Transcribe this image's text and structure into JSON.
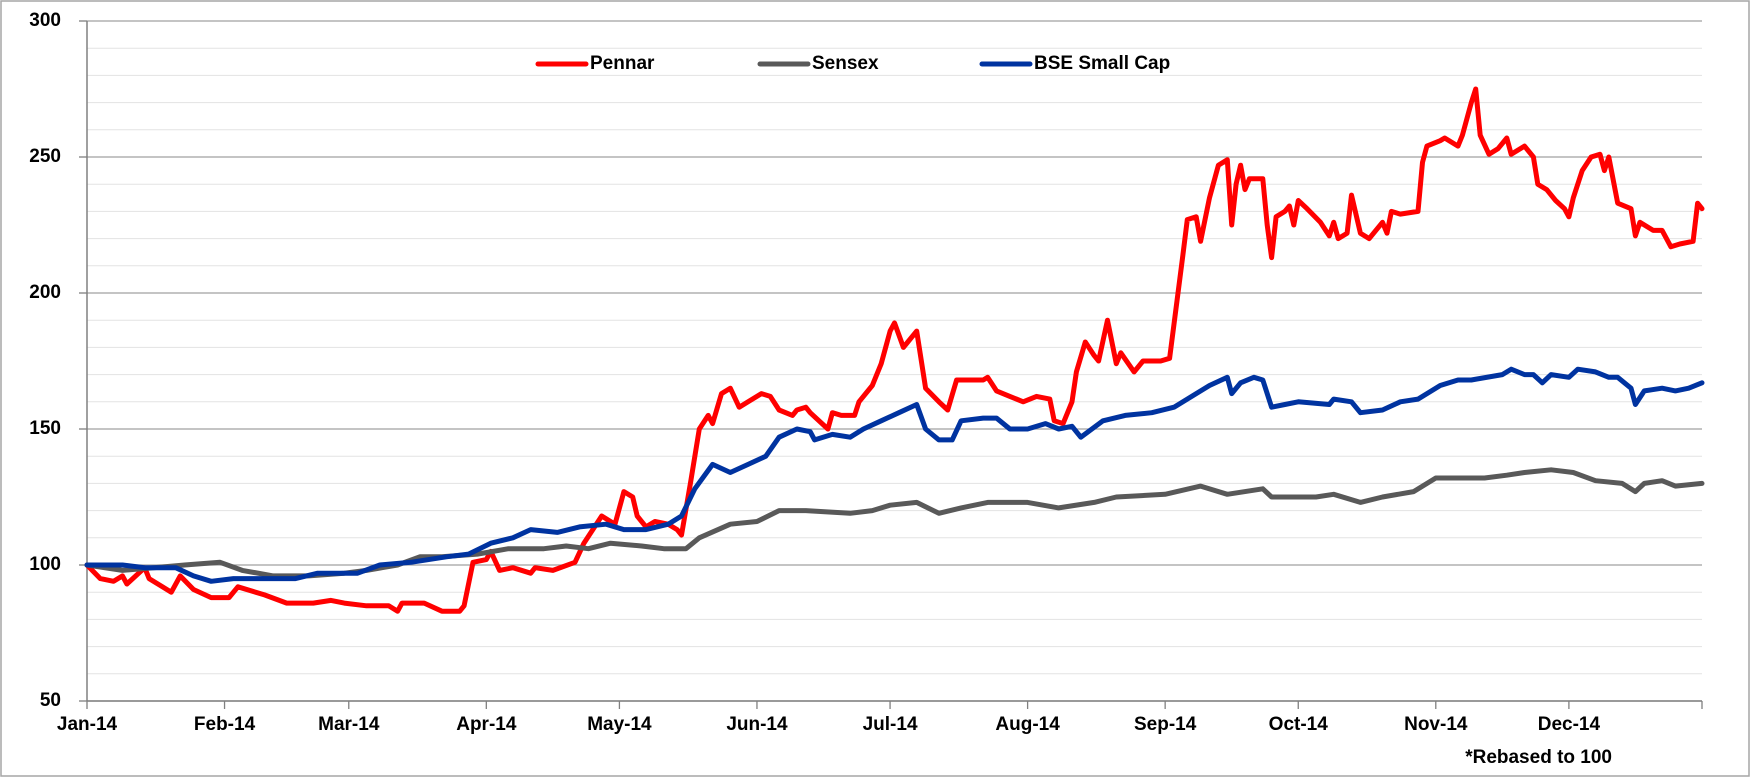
{
  "chart_data": {
    "type": "line",
    "annotation": "*Rebased to 100",
    "xlim": [
      0,
      364
    ],
    "xticks": [
      {
        "value": 0,
        "label": "Jan-14"
      },
      {
        "value": 31,
        "label": "Feb-14"
      },
      {
        "value": 59,
        "label": "Mar-14"
      },
      {
        "value": 90,
        "label": "Apr-14"
      },
      {
        "value": 120,
        "label": "May-14"
      },
      {
        "value": 151,
        "label": "Jun-14"
      },
      {
        "value": 181,
        "label": "Jul-14"
      },
      {
        "value": 212,
        "label": "Aug-14"
      },
      {
        "value": 243,
        "label": "Sep-14"
      },
      {
        "value": 273,
        "label": "Oct-14"
      },
      {
        "value": 304,
        "label": "Nov-14"
      },
      {
        "value": 334,
        "label": "Dec-14"
      },
      {
        "value": 364,
        "label": ""
      }
    ],
    "ylim": [
      50,
      300
    ],
    "yticks": [
      50,
      100,
      150,
      200,
      250,
      300
    ],
    "minor_yticks": [
      60,
      70,
      80,
      90,
      110,
      120,
      130,
      140,
      160,
      170,
      180,
      190,
      210,
      220,
      230,
      240,
      260,
      270,
      280,
      290
    ],
    "grid": true,
    "legend": "top",
    "series": [
      {
        "name": "Pennar",
        "color": "#ff0000",
        "x": [
          0,
          3,
          6,
          8,
          9,
          13,
          14,
          17,
          19,
          21,
          24,
          28,
          32,
          34,
          40,
          45,
          51,
          55,
          58,
          63,
          68,
          70,
          71,
          76,
          80,
          84,
          85,
          87,
          90,
          91,
          93,
          96,
          100,
          101,
          105,
          110,
          112,
          116,
          119,
          121,
          123,
          124,
          126,
          128,
          131,
          133,
          134,
          136,
          138,
          140,
          141,
          143,
          145,
          147,
          149,
          152,
          154,
          156,
          159,
          160,
          162,
          163,
          167,
          168,
          170,
          173,
          174,
          177,
          179,
          181,
          182,
          184,
          185,
          187,
          189,
          192,
          194,
          196,
          198,
          202,
          203,
          205,
          208,
          211,
          214,
          217,
          218,
          220,
          222,
          223,
          225,
          227,
          228,
          230,
          232,
          233,
          236,
          238,
          242,
          244,
          247,
          248,
          250,
          251,
          253,
          255,
          257,
          258,
          259,
          260,
          261,
          262,
          265,
          266,
          267,
          268,
          270,
          271,
          272,
          273,
          275,
          278,
          280,
          281,
          282,
          284,
          285,
          287,
          289,
          292,
          293,
          294,
          296,
          300,
          301,
          302,
          305,
          306,
          309,
          310,
          312,
          313,
          314,
          316,
          318,
          320,
          321,
          324,
          326,
          327,
          329,
          331,
          333,
          334,
          335,
          337,
          339,
          341,
          342,
          343,
          345,
          348,
          349,
          350,
          353,
          355,
          357,
          359,
          362,
          363,
          364
        ],
        "values": [
          100,
          95,
          94,
          96,
          93,
          99,
          95,
          92,
          90,
          96,
          91,
          88,
          88,
          92,
          89,
          86,
          86,
          87,
          86,
          85,
          85,
          83,
          86,
          86,
          83,
          83,
          85,
          101,
          102,
          105,
          98,
          99,
          97,
          99,
          98,
          101,
          108,
          118,
          115,
          127,
          125,
          118,
          114,
          116,
          115,
          113,
          111,
          130,
          150,
          155,
          152,
          163,
          165,
          158,
          160,
          163,
          162,
          157,
          155,
          157,
          158,
          156,
          150,
          156,
          155,
          155,
          160,
          166,
          174,
          186,
          189,
          180,
          182,
          186,
          165,
          160,
          157,
          168,
          168,
          168,
          169,
          164,
          162,
          160,
          162,
          161,
          153,
          152,
          160,
          171,
          182,
          177,
          175,
          190,
          174,
          178,
          171,
          175,
          175,
          176,
          214,
          227,
          228,
          219,
          235,
          247,
          249,
          225,
          240,
          247,
          238,
          242,
          242,
          225,
          213,
          228,
          230,
          232,
          225,
          234,
          231,
          226,
          221,
          226,
          220,
          222,
          236,
          222,
          220,
          226,
          222,
          230,
          229,
          230,
          248,
          254,
          256,
          257,
          254,
          258,
          270,
          275,
          258,
          251,
          253,
          257,
          251,
          254,
          250,
          240,
          238,
          234,
          231,
          228,
          235,
          245,
          250,
          251,
          245,
          250,
          233,
          231,
          221,
          226,
          223,
          223,
          217,
          218,
          219,
          233,
          231
        ]
      },
      {
        "name": "Sensex",
        "color": "#595959",
        "x": [
          0,
          8,
          15,
          22,
          30,
          35,
          42,
          50,
          58,
          63,
          70,
          75,
          80,
          88,
          95,
          103,
          108,
          113,
          118,
          125,
          130,
          135,
          138,
          145,
          151,
          156,
          162,
          172,
          177,
          181,
          187,
          192,
          197,
          203,
          212,
          219,
          227,
          232,
          243,
          251,
          257,
          265,
          267,
          277,
          281,
          287,
          292,
          299,
          304,
          307,
          315,
          320,
          324,
          330,
          335,
          340,
          346,
          349,
          351,
          355,
          358,
          364
        ],
        "values": [
          100,
          98,
          99,
          100,
          101,
          98,
          96,
          96,
          97,
          98,
          100,
          103,
          103,
          104,
          106,
          106,
          107,
          106,
          108,
          107,
          106,
          106,
          110,
          115,
          116,
          120,
          120,
          119,
          120,
          122,
          123,
          119,
          121,
          123,
          123,
          121,
          123,
          125,
          126,
          129,
          126,
          128,
          125,
          125,
          126,
          123,
          125,
          127,
          132,
          132,
          132,
          133,
          134,
          135,
          134,
          131,
          130,
          127,
          130,
          131,
          129,
          130
        ]
      },
      {
        "name": "BSE Small Cap",
        "color": "#0033a0",
        "x": [
          0,
          8,
          13,
          20,
          24,
          28,
          33,
          41,
          47,
          52,
          61,
          66,
          73,
          81,
          86,
          91,
          96,
          100,
          106,
          111,
          117,
          121,
          126,
          131,
          134,
          137,
          141,
          145,
          149,
          153,
          156,
          160,
          163,
          164,
          168,
          172,
          175,
          179,
          183,
          187,
          189,
          192,
          195,
          197,
          202,
          205,
          208,
          212,
          216,
          219,
          222,
          224,
          229,
          234,
          240,
          245,
          250,
          253,
          257,
          258,
          260,
          263,
          265,
          267,
          270,
          273,
          280,
          281,
          285,
          287,
          292,
          296,
          300,
          305,
          309,
          312,
          319,
          321,
          324,
          326,
          328,
          330,
          334,
          336,
          340,
          343,
          345,
          348,
          349,
          351,
          355,
          358,
          361,
          364
        ],
        "values": [
          100,
          100,
          99,
          99,
          96,
          94,
          95,
          95,
          95,
          97,
          97,
          100,
          101,
          103,
          104,
          108,
          110,
          113,
          112,
          114,
          115,
          113,
          113,
          115,
          118,
          128,
          137,
          134,
          137,
          140,
          147,
          150,
          149,
          146,
          148,
          147,
          150,
          153,
          156,
          159,
          150,
          146,
          146,
          153,
          154,
          154,
          150,
          150,
          152,
          150,
          151,
          147,
          153,
          155,
          156,
          158,
          163,
          166,
          169,
          163,
          167,
          169,
          168,
          158,
          159,
          160,
          159,
          161,
          160,
          156,
          157,
          160,
          161,
          166,
          168,
          168,
          170,
          172,
          170,
          170,
          167,
          170,
          169,
          172,
          171,
          169,
          169,
          165,
          159,
          164,
          165,
          164,
          165,
          167
        ]
      }
    ]
  }
}
